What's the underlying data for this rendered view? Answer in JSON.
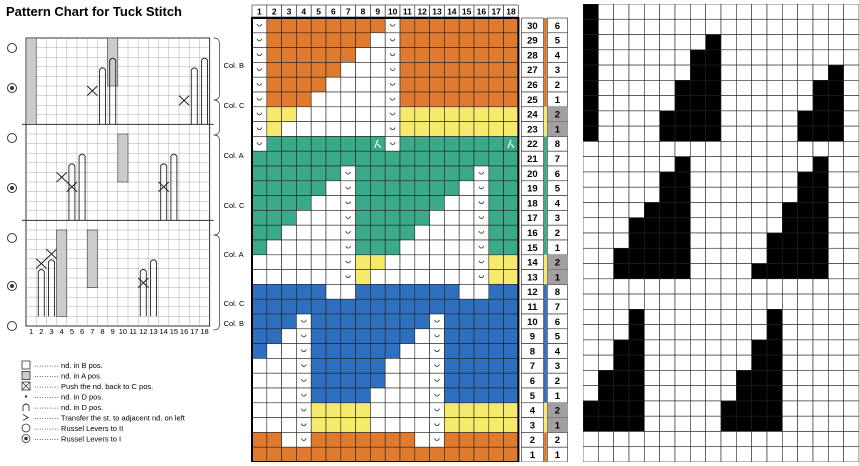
{
  "title": "Pattern Chart for Tuck Stitch",
  "left_col_numbers": [
    "1",
    "2",
    "3",
    "4",
    "5",
    "6",
    "7",
    "8",
    "9",
    "10",
    "11",
    "12",
    "13",
    "14",
    "15",
    "16",
    "17",
    "18"
  ],
  "col_labels": [
    {
      "text": "Col. B",
      "y": 68
    },
    {
      "text": "Col. C",
      "y": 108
    },
    {
      "text": "Col. A",
      "y": 158
    },
    {
      "text": "Col. C",
      "y": 208
    },
    {
      "text": "Col. A",
      "y": 257
    },
    {
      "text": "Col. C",
      "y": 306
    },
    {
      "text": "Col. B",
      "y": 326
    }
  ],
  "legend": [
    {
      "symbol": "square",
      "text": "nd. in B pos."
    },
    {
      "symbol": "hatched",
      "text": "nd. in A pos."
    },
    {
      "symbol": "boxx",
      "text": "Push the nd. back to C pos."
    },
    {
      "symbol": "dot",
      "text": "nd. in D pos."
    },
    {
      "symbol": "arch",
      "text": "nd. in D pos."
    },
    {
      "symbol": "chev",
      "text": "Transfer the st. to adjacent nd. on left"
    },
    {
      "symbol": "ring",
      "text": "Russel Levers to II"
    },
    {
      "symbol": "dring",
      "text": "Russel Levers to I"
    }
  ],
  "grid_col_numbers": [
    "1",
    "2",
    "3",
    "4",
    "5",
    "6",
    "7",
    "8",
    "9",
    "10",
    "11",
    "12",
    "13",
    "14",
    "15",
    "16",
    "17",
    "18"
  ],
  "grid_row_numbers": [
    "30",
    "29",
    "28",
    "27",
    "26",
    "25",
    "24",
    "23",
    "22",
    "21",
    "20",
    "19",
    "18",
    "17",
    "16",
    "15",
    "14",
    "13",
    "12",
    "11",
    "10",
    "9",
    "8",
    "7",
    "6",
    "5",
    "4",
    "3",
    "2",
    "1"
  ],
  "carriage_numbers": [
    "6",
    "5",
    "4",
    "3",
    "2",
    "1",
    "2",
    "1",
    "8",
    "7",
    "6",
    "5",
    "4",
    "3",
    "2",
    "1",
    "2",
    "1",
    "8",
    "7",
    "6",
    "5",
    "4",
    "3",
    "2",
    "1",
    "2",
    "1",
    "2",
    "1"
  ],
  "colors": {
    "orange": "#e07a2e",
    "yellow": "#f6e96c",
    "green": "#3aaa8a",
    "blue": "#2e6fbf",
    "grey": "#a0a0a0",
    "black": "#000000"
  }
}
